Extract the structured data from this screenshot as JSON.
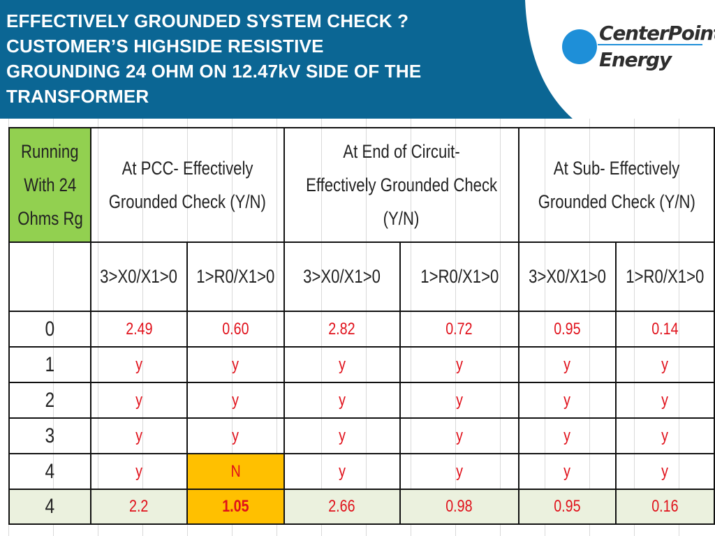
{
  "slide": {
    "title_lines": [
      "EFFECTIVELY GROUNDED SYSTEM CHECK ?",
      "CUSTOMER’S HIGHSIDE RESISTIVE",
      "GROUNDING 24 OHM ON 12.47kV SIDE OF THE",
      "TRANSFORMER"
    ],
    "logo": {
      "line1": "CenterPoint.",
      "line2": "Energy"
    },
    "colors": {
      "banner": "#0b6694",
      "header_green": "#92d050",
      "highlight": "#ffc000",
      "value_red": "#e0101a",
      "last_row_bg": "#ebf1de"
    }
  },
  "table": {
    "corner_header": [
      "Running",
      "With 24",
      "Ohms Rg"
    ],
    "group_headers": [
      [
        "At PCC- Effectively",
        "Grounded Check (Y/N)"
      ],
      [
        "At End of Circuit-",
        "Effectively Grounded Check",
        "(Y/N)"
      ],
      [
        "At Sub- Effectively",
        "Grounded Check (Y/N)"
      ]
    ],
    "sub_headers": [
      "3>X0/X1>0",
      "1>R0/X1>0",
      "3>X0/X1>0",
      "1>R0/X1>0",
      "3>X0/X1>0",
      "1>R0/X1>0"
    ],
    "rows": [
      {
        "label": "0",
        "values": [
          "2.49",
          "0.60",
          "2.82",
          "0.72",
          "0.95",
          "0.14"
        ],
        "highlight": []
      },
      {
        "label": "1",
        "values": [
          "y",
          "y",
          "y",
          "y",
          "y",
          "y"
        ],
        "highlight": []
      },
      {
        "label": "2",
        "values": [
          "y",
          "y",
          "y",
          "y",
          "y",
          "y"
        ],
        "highlight": []
      },
      {
        "label": "3",
        "values": [
          "y",
          "y",
          "y",
          "y",
          "y",
          "y"
        ],
        "highlight": []
      },
      {
        "label": "4",
        "values": [
          "y",
          "N",
          "y",
          "y",
          "y",
          "y"
        ],
        "highlight": [
          1
        ]
      },
      {
        "label": "4",
        "values": [
          "2.2",
          "1.05",
          "2.66",
          "0.98",
          "0.95",
          "0.16"
        ],
        "highlight": [
          1
        ]
      }
    ]
  }
}
